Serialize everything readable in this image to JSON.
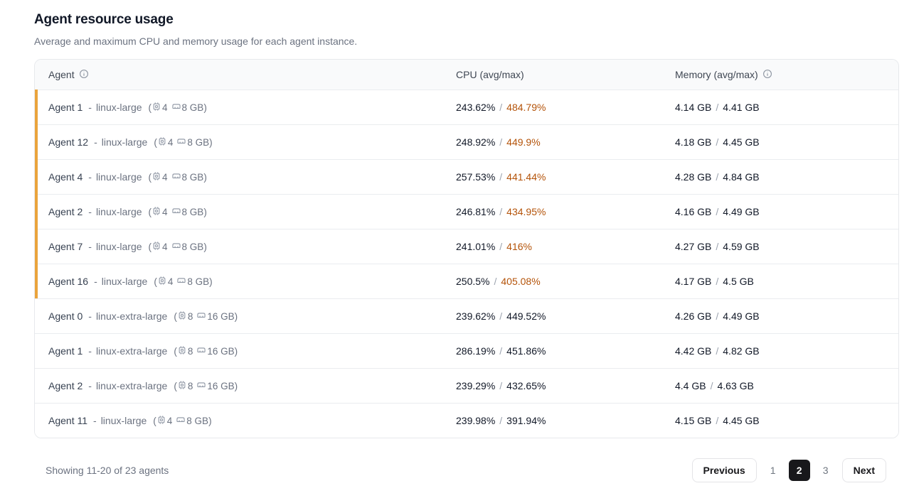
{
  "page": {
    "title": "Agent resource usage",
    "subtitle": "Average and maximum CPU and memory usage for each agent instance."
  },
  "table": {
    "columns": {
      "agent": "Agent",
      "cpu": "CPU (avg/max)",
      "memory": "Memory (avg/max)"
    },
    "type_separator": "-",
    "spec_open": "(",
    "spec_close": ")",
    "value_separator": "/",
    "rows": [
      {
        "name": "Agent 1",
        "type": "linux-large",
        "cpu_count": "4",
        "ram_size": "8 GB",
        "cpu_avg": "243.62%",
        "cpu_max": "484.79%",
        "mem_avg": "4.14 GB",
        "mem_max": "4.41 GB",
        "highlighted": true
      },
      {
        "name": "Agent 12",
        "type": "linux-large",
        "cpu_count": "4",
        "ram_size": "8 GB",
        "cpu_avg": "248.92%",
        "cpu_max": "449.9%",
        "mem_avg": "4.18 GB",
        "mem_max": "4.45 GB",
        "highlighted": true
      },
      {
        "name": "Agent 4",
        "type": "linux-large",
        "cpu_count": "4",
        "ram_size": "8 GB",
        "cpu_avg": "257.53%",
        "cpu_max": "441.44%",
        "mem_avg": "4.28 GB",
        "mem_max": "4.84 GB",
        "highlighted": true
      },
      {
        "name": "Agent 2",
        "type": "linux-large",
        "cpu_count": "4",
        "ram_size": "8 GB",
        "cpu_avg": "246.81%",
        "cpu_max": "434.95%",
        "mem_avg": "4.16 GB",
        "mem_max": "4.49 GB",
        "highlighted": true
      },
      {
        "name": "Agent 7",
        "type": "linux-large",
        "cpu_count": "4",
        "ram_size": "8 GB",
        "cpu_avg": "241.01%",
        "cpu_max": "416%",
        "mem_avg": "4.27 GB",
        "mem_max": "4.59 GB",
        "highlighted": true
      },
      {
        "name": "Agent 16",
        "type": "linux-large",
        "cpu_count": "4",
        "ram_size": "8 GB",
        "cpu_avg": "250.5%",
        "cpu_max": "405.08%",
        "mem_avg": "4.17 GB",
        "mem_max": "4.5 GB",
        "highlighted": true
      },
      {
        "name": "Agent 0",
        "type": "linux-extra-large",
        "cpu_count": "8",
        "ram_size": "16 GB",
        "cpu_avg": "239.62%",
        "cpu_max": "449.52%",
        "mem_avg": "4.26 GB",
        "mem_max": "4.49 GB",
        "highlighted": false
      },
      {
        "name": "Agent 1",
        "type": "linux-extra-large",
        "cpu_count": "8",
        "ram_size": "16 GB",
        "cpu_avg": "286.19%",
        "cpu_max": "451.86%",
        "mem_avg": "4.42 GB",
        "mem_max": "4.82 GB",
        "highlighted": false
      },
      {
        "name": "Agent 2",
        "type": "linux-extra-large",
        "cpu_count": "8",
        "ram_size": "16 GB",
        "cpu_avg": "239.29%",
        "cpu_max": "432.65%",
        "mem_avg": "4.4 GB",
        "mem_max": "4.63 GB",
        "highlighted": false
      },
      {
        "name": "Agent 11",
        "type": "linux-large",
        "cpu_count": "4",
        "ram_size": "8 GB",
        "cpu_avg": "239.98%",
        "cpu_max": "391.94%",
        "mem_avg": "4.15 GB",
        "mem_max": "4.45 GB",
        "highlighted": false
      }
    ]
  },
  "footer": {
    "showing": "Showing 11-20 of 23 agents",
    "previous_label": "Previous",
    "next_label": "Next",
    "pages": [
      "1",
      "2",
      "3"
    ],
    "active_page": "2"
  },
  "colors": {
    "accent_bar": "#eaa43c",
    "high_usage_text": "#b45309",
    "active_page_bg": "#18181b"
  }
}
